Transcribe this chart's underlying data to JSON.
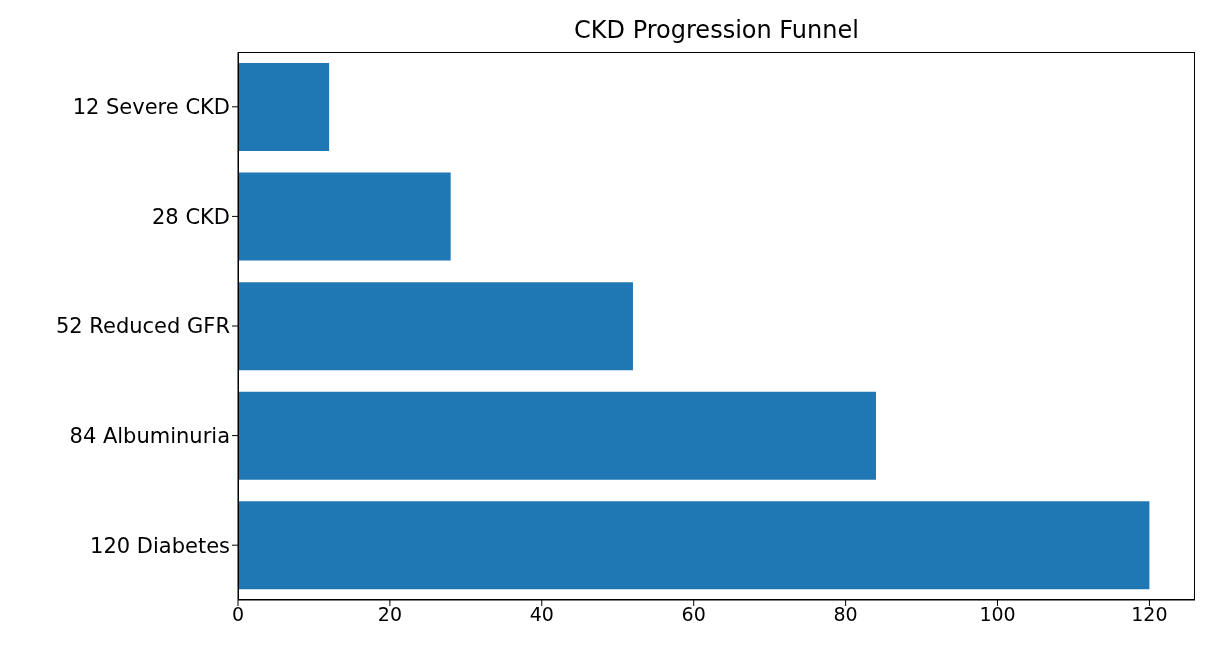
{
  "chart_data": {
    "type": "bar",
    "title": "CKD Progression Funnel",
    "orientation": "horizontal",
    "categories": [
      "12 Severe CKD",
      "28 CKD",
      "52 Reduced GFR",
      "84 Albuminuria",
      "120 Diabetes"
    ],
    "values": [
      12,
      28,
      52,
      84,
      120
    ],
    "color": "#1f77b4",
    "xlim": [
      0,
      126
    ],
    "xticks": [
      0,
      20,
      40,
      60,
      80,
      100,
      120
    ],
    "grid": false
  }
}
